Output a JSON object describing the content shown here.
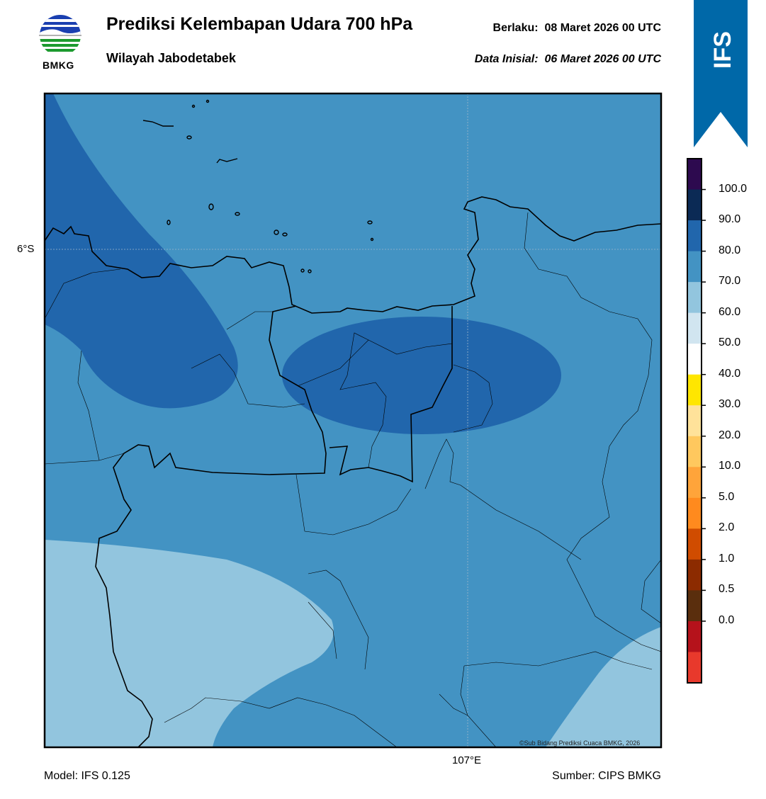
{
  "logo": {
    "text": "BMKG"
  },
  "header": {
    "title": "Prediksi Kelembapan Udara 700 hPa",
    "region": "Wilayah Jabodetabek",
    "valid_label": "Berlaku:",
    "valid_value": "08 Maret 2026 00 UTC",
    "init_label": "Data Inisial:",
    "init_value": "06 Maret 2026 00 UTC"
  },
  "banner": {
    "text": "IFS",
    "color": "#0068a8"
  },
  "map": {
    "lat_label": "6°S",
    "lon_label": "107°E",
    "copyright": "©Sub Bidang Prediksi Cuaca BMKG, 2026"
  },
  "colorbar": {
    "labels": [
      "100.0",
      "90.0",
      "80.0",
      "70.0",
      "60.0",
      "50.0",
      "40.0",
      "30.0",
      "20.0",
      "10.0",
      "5.0",
      "2.0",
      "1.0",
      "0.5",
      "0.0"
    ],
    "colors": [
      "#2d0a4f",
      "#0b2a55",
      "#2166ac",
      "#4393c3",
      "#92c5de",
      "#d1e5f0",
      "#ffffff",
      "#ffe600",
      "#ffe29a",
      "#ffc85e",
      "#ffa43a",
      "#ff8a1e",
      "#d04c00",
      "#8c2b00",
      "#5a2e0d",
      "#b5121b",
      "#e8392c"
    ]
  },
  "footer": {
    "model": "Model: IFS 0.125",
    "source": "Sumber: CIPS BMKG"
  }
}
